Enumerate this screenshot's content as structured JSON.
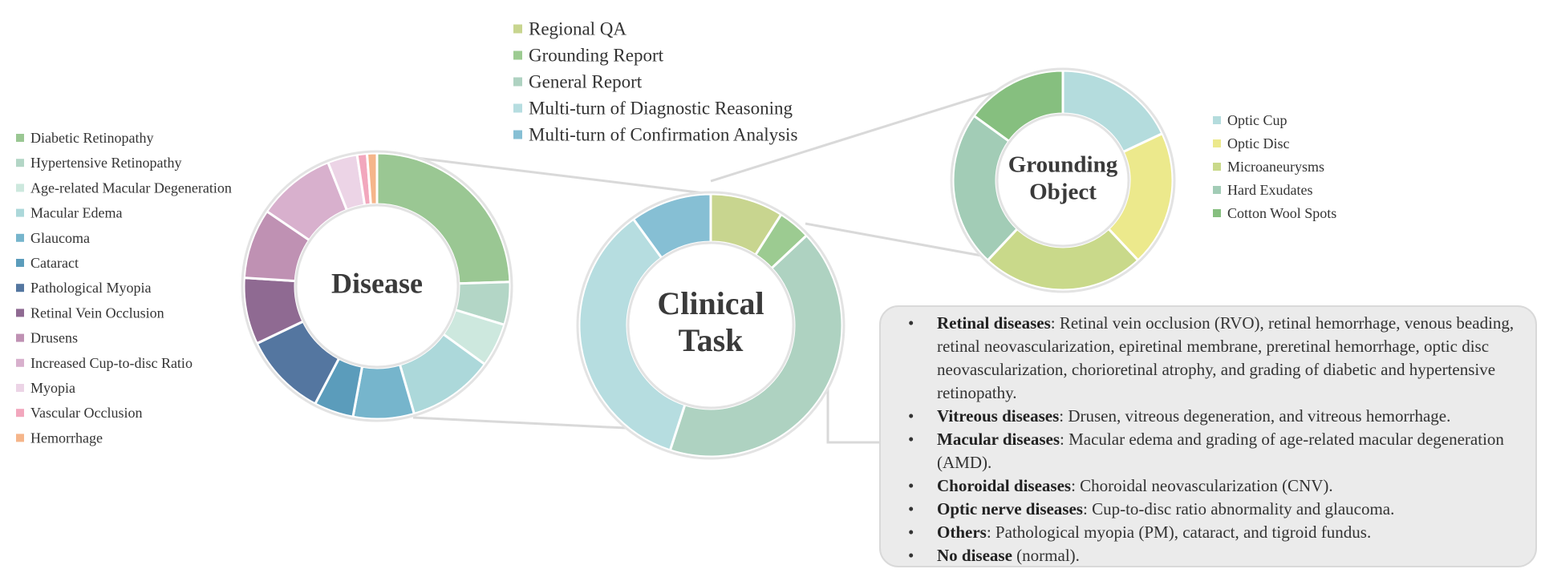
{
  "chart_data": [
    {
      "type": "pie",
      "center_label": "Disease",
      "categories": [
        "Diabetic Retinopathy",
        "Hypertensive Retinopathy",
        "Age-related Macular Degeneration",
        "Macular Edema",
        "Glaucoma",
        "Cataract",
        "Pathological Myopia",
        "Retinal Vein Occlusion",
        "Drusens",
        "Increased Cup-to-disc Ratio",
        "Myopia",
        "Vascular Occlusion",
        "Hemorrhage"
      ],
      "values": [
        24.5,
        5.2,
        5.3,
        10.5,
        7.4,
        4.8,
        10.2,
        8.1,
        8.5,
        9.5,
        3.6,
        1.2,
        1.2
      ],
      "colors": [
        "#9ac793",
        "#b3d6c6",
        "#cde8de",
        "#acd8da",
        "#76b5cc",
        "#5b9cbb",
        "#5476a0",
        "#8f6a92",
        "#bf91b3",
        "#d8b0cd",
        "#ecd4e6",
        "#f2a7bd",
        "#f5b58a"
      ],
      "legend_position": "left"
    },
    {
      "type": "pie",
      "center_label_lines": [
        "Clinical",
        "Task"
      ],
      "categories": [
        "Regional QA",
        "Grounding Report",
        "General Report",
        "Multi-turn of Diagnostic Reasoning",
        "Multi-turn of Confirmation Analysis"
      ],
      "values": [
        9,
        4,
        42,
        35,
        10
      ],
      "colors": [
        "#c8d58f",
        "#9ccb91",
        "#aed2c1",
        "#b6dde0",
        "#86bfd4"
      ],
      "legend_position": "top"
    },
    {
      "type": "pie",
      "center_label_lines": [
        "Grounding",
        "Object"
      ],
      "categories": [
        "Optic Cup",
        "Optic Disc",
        "Microaneurysms",
        "Hard Exudates",
        "Cotton Wool Spots"
      ],
      "values": [
        18,
        20,
        24,
        23,
        15
      ],
      "colors": [
        "#b4dcdd",
        "#ece98c",
        "#c9d98a",
        "#a2ccb6",
        "#86bf7f"
      ],
      "legend_position": "right"
    }
  ],
  "info_box": {
    "items": [
      {
        "term": "Retinal diseases",
        "desc": ": Retinal vein occlusion (RVO), retinal hemorrhage, venous beading, retinal neovascularization, epiretinal membrane, preretinal hemorrhage, optic disc neovascularization, chorioretinal atrophy, and grading of diabetic and hypertensive retinopathy."
      },
      {
        "term": "Vitreous diseases",
        "desc": ": Drusen, vitreous degeneration, and vitreous hemorrhage."
      },
      {
        "term": "Macular diseases",
        "desc": ": Macular edema and grading of age-related macular degeneration (AMD)."
      },
      {
        "term": "Choroidal diseases",
        "desc": ": Choroidal neovascularization (CNV)."
      },
      {
        "term": "Optic nerve diseases",
        "desc": ": Cup-to-disc ratio abnormality and glaucoma."
      },
      {
        "term": "Others",
        "desc": ": Pathological myopia (PM), cataract, and tigroid fundus."
      },
      {
        "term": "No disease",
        "desc": " (normal)."
      }
    ]
  }
}
